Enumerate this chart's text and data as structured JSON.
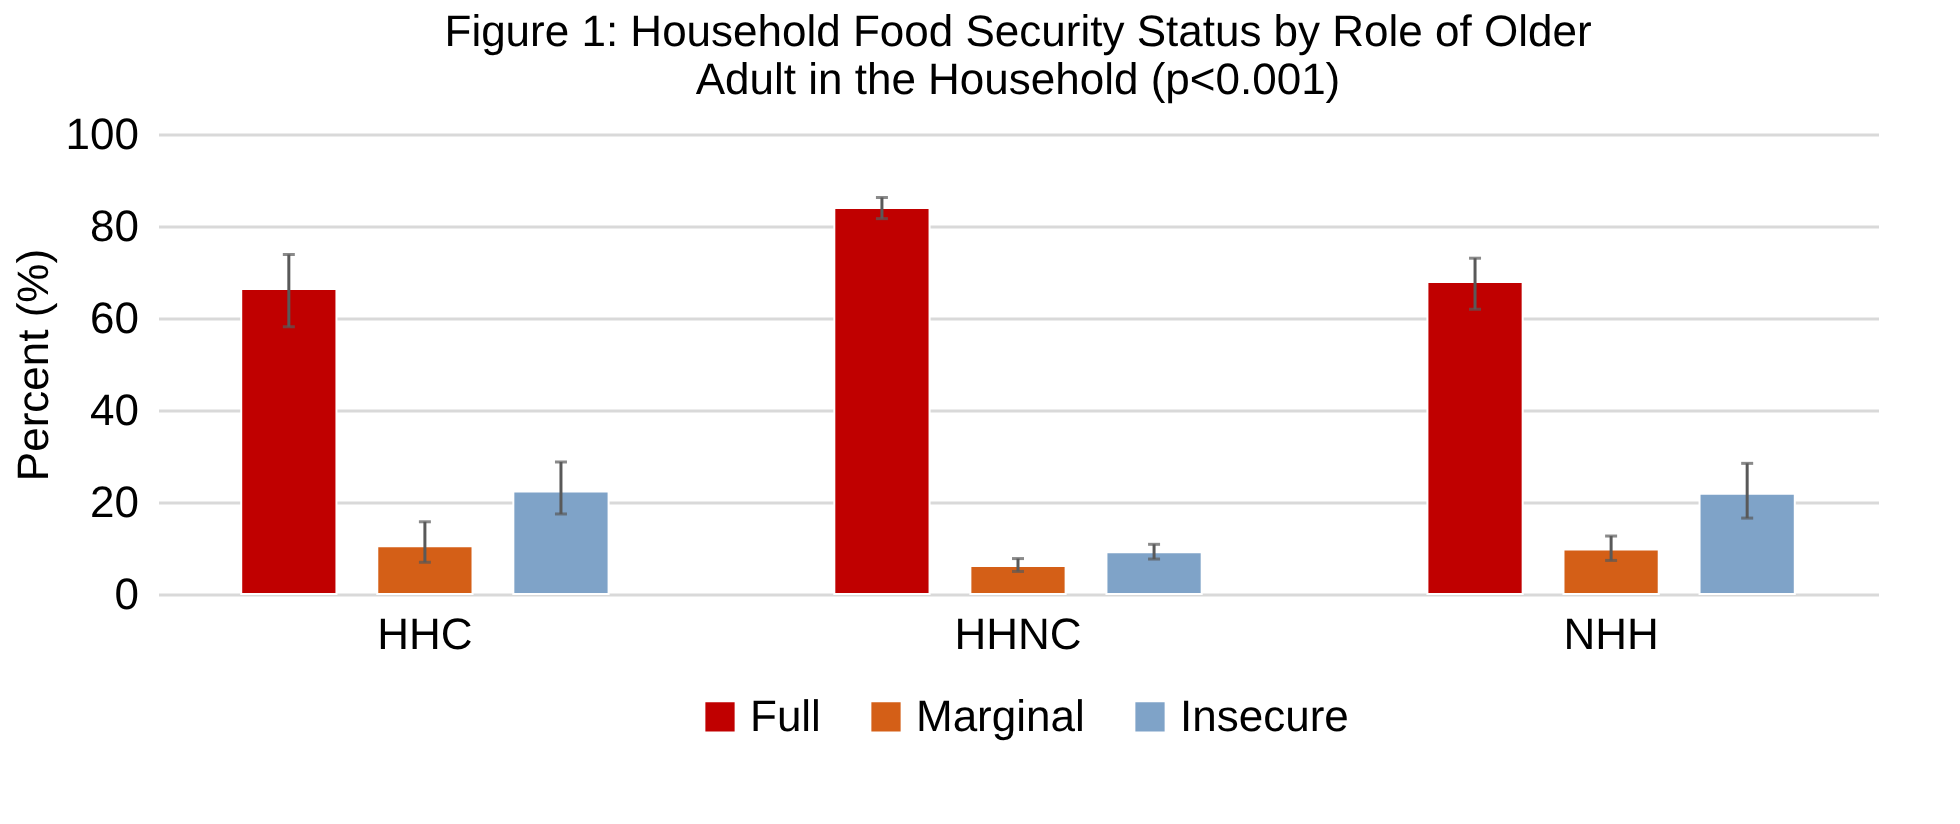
{
  "chart_data": {
    "type": "bar",
    "title": "Figure 1: Household Food Security Status by Role of Older\nAdult in the Household (p<0.001)",
    "ylabel": "Percent (%)",
    "categories": [
      "HHC",
      "HHNC",
      "NHH"
    ],
    "series": [
      {
        "name": "Full",
        "color": "#c00000",
        "values": [
          66.3,
          83.9,
          67.8
        ],
        "errors": [
          [
            58.1,
            73.8
          ],
          [
            81.6,
            86.2
          ],
          [
            61.9,
            73.0
          ]
        ]
      },
      {
        "name": "Marginal",
        "color": "#d45f17",
        "values": [
          10.4,
          6.1,
          9.7
        ],
        "errors": [
          [
            6.9,
            15.7
          ],
          [
            4.9,
            7.7
          ],
          [
            7.3,
            12.6
          ]
        ]
      },
      {
        "name": "Insecure",
        "color": "#7fa3c8",
        "values": [
          22.3,
          9.1,
          21.8
        ],
        "errors": [
          [
            17.4,
            28.7
          ],
          [
            7.6,
            10.8
          ],
          [
            16.5,
            28.4
          ]
        ]
      }
    ],
    "ylim": [
      0,
      100
    ],
    "yticks": [
      0,
      20,
      40,
      60,
      80,
      100
    ],
    "grid": "y",
    "legend": "bottom"
  }
}
